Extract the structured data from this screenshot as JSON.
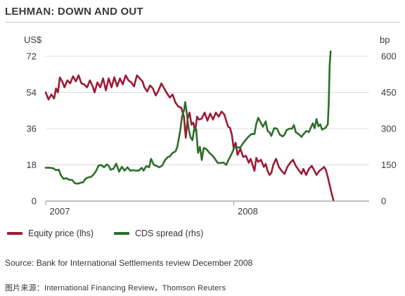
{
  "title": "LEHMAN: DOWN AND OUT",
  "source": "Source: Bank for International Settlements review December 2008",
  "credit": "图片来源：International Financing Review，Thomson Reuters",
  "chart_data": {
    "type": "line",
    "left_unit": "US$",
    "right_unit": "bp",
    "x_ticks": [
      {
        "label": "2007",
        "x": 2007.0
      },
      {
        "label": "2008",
        "x": 2008.0
      }
    ],
    "xlim": [
      2007.0,
      2008.72
    ],
    "ylim_left": [
      0,
      72
    ],
    "ylim_right": [
      0,
      600
    ],
    "left_ticks": [
      0,
      18,
      36,
      54,
      72
    ],
    "right_ticks": [
      0,
      150,
      300,
      450,
      600
    ],
    "grid": true,
    "legend_position": "bottom",
    "series": [
      {
        "name": "Equity price (lhs)",
        "axis": "left",
        "color": "#9b1b38",
        "points": [
          [
            2007.0,
            54
          ],
          [
            2007.015,
            50.5
          ],
          [
            2007.03,
            53
          ],
          [
            2007.045,
            51
          ],
          [
            2007.055,
            56
          ],
          [
            2007.065,
            54
          ],
          [
            2007.075,
            61.5
          ],
          [
            2007.09,
            59
          ],
          [
            2007.1,
            56.5
          ],
          [
            2007.115,
            60
          ],
          [
            2007.13,
            58.5
          ],
          [
            2007.145,
            62
          ],
          [
            2007.16,
            59.5
          ],
          [
            2007.175,
            62.5
          ],
          [
            2007.19,
            58.5
          ],
          [
            2007.205,
            58
          ],
          [
            2007.22,
            56.5
          ],
          [
            2007.235,
            60
          ],
          [
            2007.25,
            57
          ],
          [
            2007.26,
            54
          ],
          [
            2007.275,
            59
          ],
          [
            2007.29,
            56.5
          ],
          [
            2007.305,
            61
          ],
          [
            2007.32,
            55
          ],
          [
            2007.335,
            61
          ],
          [
            2007.35,
            56.5
          ],
          [
            2007.365,
            61.5
          ],
          [
            2007.38,
            57
          ],
          [
            2007.395,
            61
          ],
          [
            2007.41,
            58
          ],
          [
            2007.425,
            62.5
          ],
          [
            2007.44,
            60
          ],
          [
            2007.455,
            59
          ],
          [
            2007.47,
            57
          ],
          [
            2007.485,
            62.5
          ],
          [
            2007.5,
            61
          ],
          [
            2007.515,
            59.5
          ],
          [
            2007.525,
            56.5
          ],
          [
            2007.54,
            54.5
          ],
          [
            2007.555,
            57.5
          ],
          [
            2007.57,
            56
          ],
          [
            2007.585,
            52.5
          ],
          [
            2007.6,
            55
          ],
          [
            2007.615,
            58.5
          ],
          [
            2007.63,
            56
          ],
          [
            2007.645,
            53.5
          ],
          [
            2007.66,
            51.5
          ],
          [
            2007.675,
            53
          ],
          [
            2007.69,
            49
          ],
          [
            2007.705,
            47
          ],
          [
            2007.72,
            46.5
          ],
          [
            2007.735,
            42
          ],
          [
            2007.745,
            31.5
          ],
          [
            2007.755,
            41
          ],
          [
            2007.765,
            44
          ],
          [
            2007.775,
            38
          ],
          [
            2007.785,
            39
          ],
          [
            2007.795,
            35
          ],
          [
            2007.805,
            42
          ],
          [
            2007.815,
            40.5
          ],
          [
            2007.83,
            41
          ],
          [
            2007.845,
            44
          ],
          [
            2007.86,
            40
          ],
          [
            2007.875,
            43.5
          ],
          [
            2007.89,
            40.5
          ],
          [
            2007.905,
            44
          ],
          [
            2007.92,
            42
          ],
          [
            2007.935,
            44.5
          ],
          [
            2007.95,
            43
          ],
          [
            2007.96,
            40
          ],
          [
            2007.97,
            37
          ],
          [
            2007.98,
            36.5
          ],
          [
            2007.99,
            33
          ],
          [
            2008.0,
            26
          ],
          [
            2008.01,
            29
          ],
          [
            2008.02,
            23
          ],
          [
            2008.035,
            26
          ],
          [
            2008.05,
            22
          ],
          [
            2008.065,
            22.5
          ],
          [
            2008.08,
            19
          ],
          [
            2008.09,
            21
          ],
          [
            2008.1,
            18
          ],
          [
            2008.11,
            15
          ],
          [
            2008.12,
            21.5
          ],
          [
            2008.13,
            19.5
          ],
          [
            2008.145,
            20.5
          ],
          [
            2008.16,
            17
          ],
          [
            2008.17,
            18.5
          ],
          [
            2008.18,
            15
          ],
          [
            2008.19,
            13
          ],
          [
            2008.2,
            14
          ],
          [
            2008.21,
            18
          ],
          [
            2008.225,
            21
          ],
          [
            2008.24,
            17
          ],
          [
            2008.255,
            15
          ],
          [
            2008.27,
            13.5
          ],
          [
            2008.285,
            17
          ],
          [
            2008.3,
            19
          ],
          [
            2008.315,
            20.5
          ],
          [
            2008.33,
            17.5
          ],
          [
            2008.345,
            15.5
          ],
          [
            2008.36,
            13.5
          ],
          [
            2008.37,
            16
          ],
          [
            2008.385,
            13
          ],
          [
            2008.4,
            16
          ],
          [
            2008.415,
            17.5
          ],
          [
            2008.43,
            15
          ],
          [
            2008.44,
            13
          ],
          [
            2008.455,
            15
          ],
          [
            2008.47,
            16
          ],
          [
            2008.48,
            17
          ],
          [
            2008.49,
            15.5
          ],
          [
            2008.5,
            12
          ],
          [
            2008.51,
            8
          ],
          [
            2008.52,
            4
          ],
          [
            2008.53,
            0.5
          ]
        ]
      },
      {
        "name": "CDS spread (rhs)",
        "axis": "right",
        "color": "#2d6e2a",
        "points": [
          [
            2007.0,
            138
          ],
          [
            2007.02,
            138
          ],
          [
            2007.04,
            136
          ],
          [
            2007.055,
            128
          ],
          [
            2007.07,
            130
          ],
          [
            2007.08,
            108
          ],
          [
            2007.095,
            92
          ],
          [
            2007.11,
            95
          ],
          [
            2007.125,
            88
          ],
          [
            2007.14,
            88
          ],
          [
            2007.155,
            74
          ],
          [
            2007.17,
            72
          ],
          [
            2007.185,
            76
          ],
          [
            2007.2,
            78
          ],
          [
            2007.21,
            92
          ],
          [
            2007.225,
            98
          ],
          [
            2007.24,
            100
          ],
          [
            2007.255,
            110
          ],
          [
            2007.27,
            128
          ],
          [
            2007.28,
            146
          ],
          [
            2007.295,
            150
          ],
          [
            2007.31,
            140
          ],
          [
            2007.325,
            152
          ],
          [
            2007.335,
            146
          ],
          [
            2007.345,
            130
          ],
          [
            2007.36,
            134
          ],
          [
            2007.375,
            155
          ],
          [
            2007.39,
            122
          ],
          [
            2007.405,
            142
          ],
          [
            2007.42,
            126
          ],
          [
            2007.435,
            140
          ],
          [
            2007.45,
            126
          ],
          [
            2007.465,
            128
          ],
          [
            2007.48,
            126
          ],
          [
            2007.495,
            126
          ],
          [
            2007.51,
            138
          ],
          [
            2007.52,
            126
          ],
          [
            2007.535,
            145
          ],
          [
            2007.55,
            140
          ],
          [
            2007.56,
            175
          ],
          [
            2007.575,
            150
          ],
          [
            2007.59,
            145
          ],
          [
            2007.605,
            140
          ],
          [
            2007.62,
            148
          ],
          [
            2007.635,
            170
          ],
          [
            2007.65,
            183
          ],
          [
            2007.66,
            185
          ],
          [
            2007.675,
            200
          ],
          [
            2007.69,
            205
          ],
          [
            2007.7,
            225
          ],
          [
            2007.715,
            290
          ],
          [
            2007.725,
            350
          ],
          [
            2007.735,
            375
          ],
          [
            2007.742,
            410
          ],
          [
            2007.75,
            365
          ],
          [
            2007.76,
            300
          ],
          [
            2007.77,
            265
          ],
          [
            2007.78,
            252
          ],
          [
            2007.79,
            300
          ],
          [
            2007.8,
            298
          ],
          [
            2007.81,
            200
          ],
          [
            2007.82,
            225
          ],
          [
            2007.83,
            170
          ],
          [
            2007.84,
            220
          ],
          [
            2007.855,
            215
          ],
          [
            2007.87,
            200
          ],
          [
            2007.885,
            190
          ],
          [
            2007.9,
            175
          ],
          [
            2007.915,
            158
          ],
          [
            2007.93,
            158
          ],
          [
            2007.945,
            160
          ],
          [
            2007.96,
            150
          ],
          [
            2007.975,
            175
          ],
          [
            2007.99,
            198
          ],
          [
            2008.005,
            225
          ],
          [
            2008.02,
            223
          ],
          [
            2008.035,
            222
          ],
          [
            2008.05,
            240
          ],
          [
            2008.065,
            255
          ],
          [
            2008.08,
            268
          ],
          [
            2008.095,
            278
          ],
          [
            2008.11,
            278
          ],
          [
            2008.12,
            320
          ],
          [
            2008.13,
            345
          ],
          [
            2008.14,
            330
          ],
          [
            2008.155,
            308
          ],
          [
            2008.17,
            330
          ],
          [
            2008.18,
            290
          ],
          [
            2008.19,
            285
          ],
          [
            2008.2,
            270
          ],
          [
            2008.215,
            302
          ],
          [
            2008.23,
            300
          ],
          [
            2008.245,
            275
          ],
          [
            2008.26,
            268
          ],
          [
            2008.27,
            275
          ],
          [
            2008.28,
            293
          ],
          [
            2008.295,
            300
          ],
          [
            2008.31,
            300
          ],
          [
            2008.32,
            315
          ],
          [
            2008.33,
            285
          ],
          [
            2008.345,
            278
          ],
          [
            2008.36,
            266
          ],
          [
            2008.37,
            276
          ],
          [
            2008.385,
            290
          ],
          [
            2008.4,
            286
          ],
          [
            2008.41,
            305
          ],
          [
            2008.42,
            322
          ],
          [
            2008.43,
            302
          ],
          [
            2008.44,
            340
          ],
          [
            2008.45,
            310
          ],
          [
            2008.46,
            318
          ],
          [
            2008.47,
            296
          ],
          [
            2008.48,
            300
          ],
          [
            2008.49,
            305
          ],
          [
            2008.5,
            318
          ],
          [
            2008.505,
            400
          ],
          [
            2008.51,
            560
          ],
          [
            2008.515,
            620
          ]
        ]
      }
    ]
  }
}
